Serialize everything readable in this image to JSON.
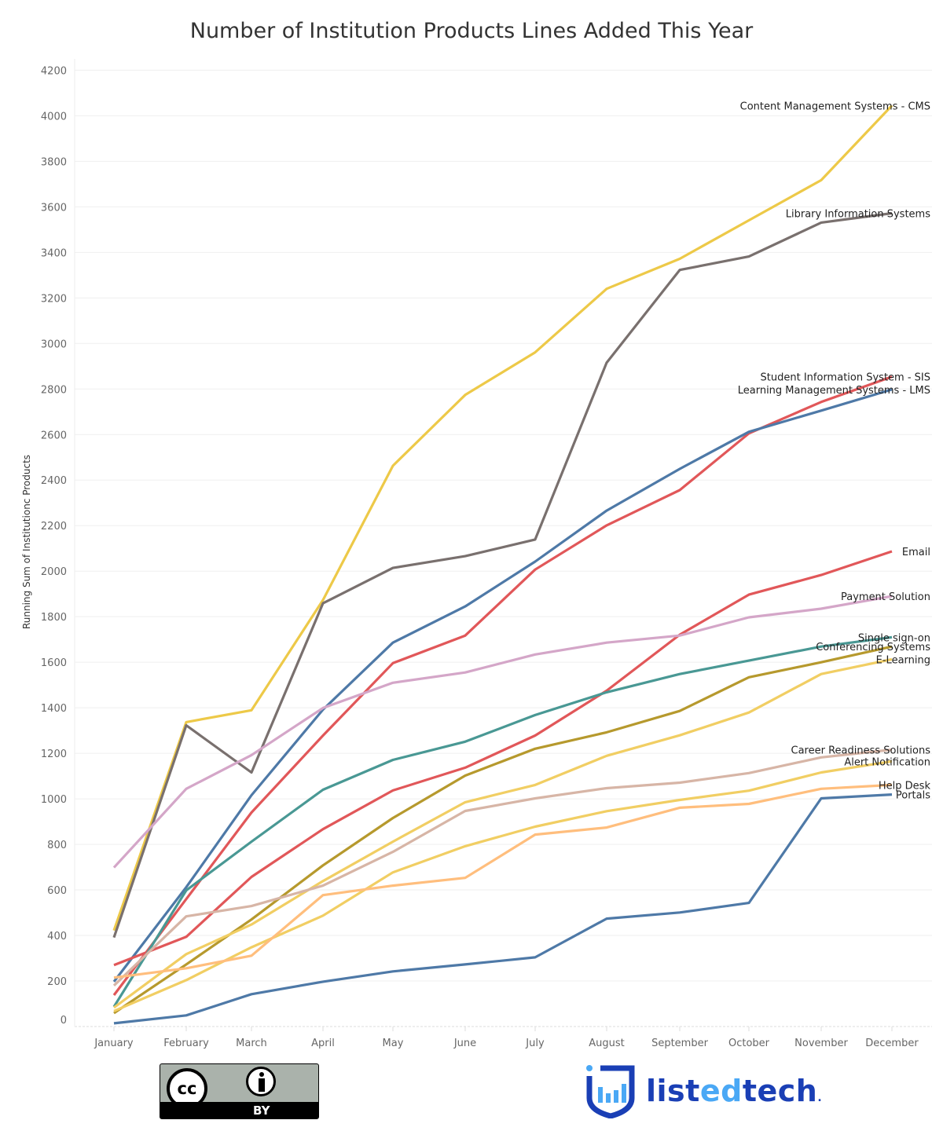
{
  "title": "Number of Institution Products Lines Added This Year",
  "logo": {
    "text_pre": "list",
    "text_mid": "ed",
    "text_post": "tech",
    "mark": "."
  },
  "license": {
    "badge": "BY",
    "cc": "cc"
  },
  "chart_data": {
    "type": "line",
    "title": "Number of Institution Products Lines Added This Year",
    "xlabel": "",
    "ylabel": "Running Sum of Institutionc Products",
    "ylim": [
      0,
      4200
    ],
    "yticks": [
      0,
      200,
      400,
      600,
      800,
      1000,
      1200,
      1400,
      1600,
      1800,
      2000,
      2200,
      2400,
      2600,
      2800,
      3000,
      3200,
      3400,
      3600,
      3800,
      4000,
      4200
    ],
    "grid": true,
    "legend": "direct labels at line ends (right)",
    "categories": [
      "January",
      "February",
      "March",
      "April",
      "May",
      "June",
      "July",
      "August",
      "September",
      "October",
      "November",
      "December"
    ],
    "series": [
      {
        "name": "Content Management Systems - CMS",
        "color": "#edc948",
        "values": [
          422,
          1337,
          1389,
          1873,
          2463,
          2774,
          2961,
          3240,
          3372,
          3541,
          3717,
          4045
        ]
      },
      {
        "name": "Library Information Systems",
        "color": "#79706e",
        "values": [
          391,
          1323,
          1116,
          1859,
          2014,
          2066,
          2139,
          2916,
          3323,
          3382,
          3531,
          3572
        ]
      },
      {
        "name": "Student Information System - SIS",
        "color": "#e15759",
        "values": [
          138,
          560,
          940,
          1278,
          1596,
          1717,
          2007,
          2201,
          2356,
          2605,
          2743,
          2854
        ]
      },
      {
        "name": "Learning Management Systems - LMS",
        "color": "#4e79a7",
        "values": [
          197,
          612,
          1016,
          1392,
          1686,
          1845,
          2042,
          2266,
          2449,
          2612,
          2705,
          2798
        ]
      },
      {
        "name": "Email",
        "color": "#e15759",
        "values": [
          270,
          394,
          657,
          867,
          1037,
          1137,
          1278,
          1475,
          1721,
          1897,
          1983,
          2087
        ]
      },
      {
        "name": "Payment Solution",
        "color": "#d4a6c8",
        "values": [
          698,
          1044,
          1192,
          1399,
          1510,
          1555,
          1634,
          1686,
          1717,
          1797,
          1835,
          1890
        ]
      },
      {
        "name": "Single sign-on",
        "color": "#499894",
        "values": [
          87,
          598,
          812,
          1040,
          1171,
          1251,
          1368,
          1468,
          1548,
          1607,
          1669,
          1710
        ]
      },
      {
        "name": "Conferencing Systems",
        "color": "#b6992d",
        "values": [
          59,
          273,
          470,
          708,
          916,
          1102,
          1220,
          1292,
          1386,
          1534,
          1600,
          1669
        ]
      },
      {
        "name": "E-Learning",
        "color": "#f1ce63",
        "values": [
          83,
          318,
          448,
          639,
          812,
          985,
          1061,
          1189,
          1279,
          1379,
          1548,
          1613
        ]
      },
      {
        "name": "Career Readiness Solutions",
        "color": "#d7b5a6",
        "values": [
          180,
          484,
          529,
          619,
          767,
          947,
          1002,
          1047,
          1071,
          1113,
          1182,
          1216
        ]
      },
      {
        "name": "Alert Notification",
        "color": "#f1ce63",
        "values": [
          68,
          204,
          348,
          487,
          677,
          792,
          878,
          946,
          995,
          1036,
          1116,
          1165
        ]
      },
      {
        "name": "Help Desk",
        "color": "#ffbe7d",
        "values": [
          215,
          256,
          311,
          577,
          619,
          653,
          843,
          874,
          961,
          978,
          1044,
          1061
        ]
      },
      {
        "name": "Portals",
        "color": "#4e79a7",
        "values": [
          14,
          49,
          142,
          197,
          242,
          273,
          304,
          474,
          501,
          543,
          1002,
          1019
        ]
      }
    ]
  }
}
